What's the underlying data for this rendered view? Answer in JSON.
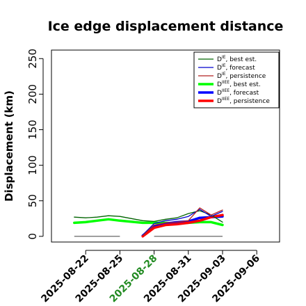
{
  "chart_data": {
    "type": "line",
    "title": "Ice edge displacement distance",
    "ylabel": "Displacement (km)",
    "xlabel": "",
    "ylim": [
      -8,
      262
    ],
    "yticks": [
      0,
      50,
      100,
      150,
      200,
      250
    ],
    "xlim": [
      "2025-08-19",
      "2025-09-08"
    ],
    "xticks": [
      {
        "date": "2025-08-22",
        "label": "2025-08-22",
        "color": "#000000"
      },
      {
        "date": "2025-08-25",
        "label": "2025-08-25",
        "color": "#000000"
      },
      {
        "date": "2025-08-28",
        "label": "2025-08-28",
        "color": "#228B22"
      },
      {
        "date": "2025-08-31",
        "label": "2025-08-31",
        "color": "#000000"
      },
      {
        "date": "2025-09-03",
        "label": "2025-09-03",
        "color": "#000000"
      },
      {
        "date": "2025-09-06",
        "label": "2025-09-06",
        "color": "#000000"
      }
    ],
    "grid": false,
    "legend_position": "top-right",
    "series": [
      {
        "name": "D^IE, best est.",
        "color": "#006400",
        "width": 1.3,
        "points": [
          [
            "2025-08-21",
            27
          ],
          [
            "2025-08-22",
            26
          ],
          [
            "2025-08-23",
            27
          ],
          [
            "2025-08-24",
            29
          ],
          [
            "2025-08-25",
            28
          ],
          [
            "2025-08-27",
            22
          ],
          [
            "2025-08-28",
            21
          ],
          [
            "2025-08-29",
            24
          ],
          [
            "2025-08-30",
            26
          ],
          [
            "2025-08-31",
            32
          ],
          [
            "2025-09-01",
            36
          ],
          [
            "2025-09-02",
            30
          ],
          [
            "2025-09-03",
            20
          ]
        ]
      },
      {
        "name": "D^IE, forecast",
        "color": "#0000CD",
        "width": 1.3,
        "points": [
          [
            "2025-08-27",
            2
          ],
          [
            "2025-08-28",
            18
          ],
          [
            "2025-08-29",
            22
          ],
          [
            "2025-08-30",
            24
          ],
          [
            "2025-08-31",
            28
          ],
          [
            "2025-09-01",
            38
          ],
          [
            "2025-09-02",
            28
          ],
          [
            "2025-09-03",
            35
          ]
        ]
      },
      {
        "name": "D^IE, persistence",
        "color": "#B22222",
        "width": 1.3,
        "points": [
          [
            "2025-08-27",
            1
          ],
          [
            "2025-08-28",
            16
          ],
          [
            "2025-08-29",
            19
          ],
          [
            "2025-08-30",
            20
          ],
          [
            "2025-08-31",
            22
          ],
          [
            "2025-09-01",
            40
          ],
          [
            "2025-09-02",
            30
          ],
          [
            "2025-09-03",
            37
          ]
        ]
      },
      {
        "name": "D^IIEE, best est.",
        "color": "#00FF00",
        "width": 3.5,
        "points": [
          [
            "2025-08-21",
            19
          ],
          [
            "2025-08-22",
            20
          ],
          [
            "2025-08-23",
            22
          ],
          [
            "2025-08-24",
            24
          ],
          [
            "2025-08-25",
            22
          ],
          [
            "2025-08-27",
            19
          ],
          [
            "2025-08-28",
            19
          ],
          [
            "2025-08-29",
            19
          ],
          [
            "2025-08-30",
            18
          ],
          [
            "2025-08-31",
            19
          ],
          [
            "2025-09-01",
            20
          ],
          [
            "2025-09-02",
            20
          ],
          [
            "2025-09-03",
            16
          ]
        ]
      },
      {
        "name": "D^IIEE, forecast",
        "color": "#0000FF",
        "width": 3.5,
        "points": [
          [
            "2025-08-27",
            1
          ],
          [
            "2025-08-28",
            14
          ],
          [
            "2025-08-29",
            18
          ],
          [
            "2025-08-30",
            20
          ],
          [
            "2025-08-31",
            21
          ],
          [
            "2025-09-01",
            26
          ],
          [
            "2025-09-02",
            27
          ],
          [
            "2025-09-03",
            28
          ]
        ]
      },
      {
        "name": "D^IIEE, persistence",
        "color": "#FF0000",
        "width": 3.5,
        "points": [
          [
            "2025-08-27",
            0
          ],
          [
            "2025-08-28",
            12
          ],
          [
            "2025-08-29",
            16
          ],
          [
            "2025-08-30",
            17
          ],
          [
            "2025-08-31",
            19
          ],
          [
            "2025-09-01",
            22
          ],
          [
            "2025-09-02",
            27
          ],
          [
            "2025-09-03",
            30
          ]
        ]
      }
    ],
    "connectors": [
      {
        "color": "#888888",
        "width": 0.8,
        "points": [
          [
            "2025-08-25",
            28
          ],
          [
            "2025-08-27",
            22
          ]
        ]
      },
      {
        "color": "#888888",
        "width": 0.8,
        "points": [
          [
            "2025-08-25",
            22
          ],
          [
            "2025-08-27",
            19
          ]
        ]
      }
    ],
    "baselines": [
      {
        "color": "#555555",
        "width": 1.2,
        "points": [
          [
            "2025-08-21",
            0
          ],
          [
            "2025-08-25",
            0
          ]
        ]
      },
      {
        "color": "#555555",
        "width": 1.2,
        "points": [
          [
            "2025-08-28",
            0
          ],
          [
            "2025-09-03",
            0
          ]
        ]
      }
    ],
    "legend": [
      {
        "base": "D",
        "sup": "IE",
        "rest": ", best est.",
        "color": "#006400",
        "width": 1.3
      },
      {
        "base": "D",
        "sup": "IE",
        "rest": ", forecast",
        "color": "#0000CD",
        "width": 1.3
      },
      {
        "base": "D",
        "sup": "IE",
        "rest": ", persistence",
        "color": "#B22222",
        "width": 1.3
      },
      {
        "base": "D",
        "sup": "IIEE",
        "rest": ", best est.",
        "color": "#00FF00",
        "width": 3.5
      },
      {
        "base": "D",
        "sup": "IIEE",
        "rest": ", forecast",
        "color": "#0000FF",
        "width": 3.5
      },
      {
        "base": "D",
        "sup": "IIEE",
        "rest": ", persistence",
        "color": "#FF0000",
        "width": 3.5
      }
    ]
  }
}
